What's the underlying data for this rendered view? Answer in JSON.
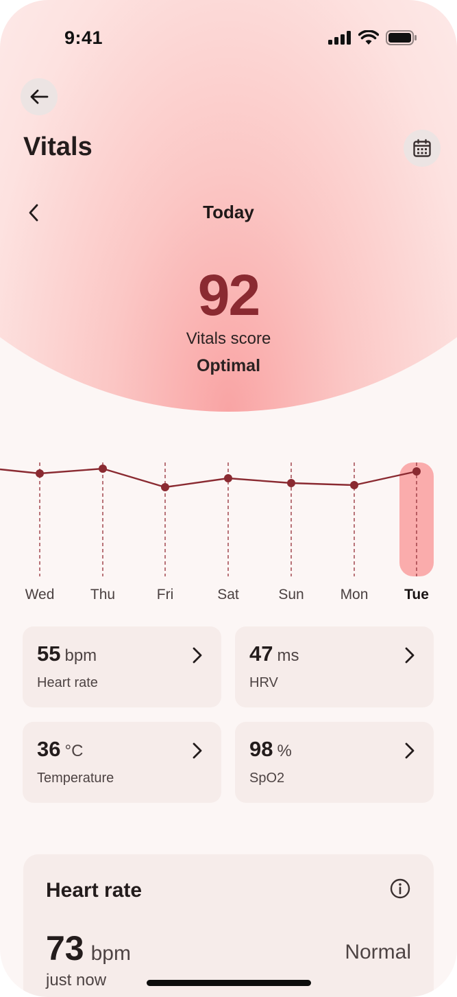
{
  "status_bar": {
    "time": "9:41",
    "icons": [
      "cellular-signal-icon",
      "wifi-icon",
      "battery-icon"
    ]
  },
  "header": {
    "title": "Vitals",
    "back_icon": "arrow-left-icon",
    "calendar_icon": "calendar-icon"
  },
  "date_nav": {
    "label": "Today",
    "prev_icon": "chevron-left-icon"
  },
  "score": {
    "value": "92",
    "label": "Vitals score",
    "status": "Optimal"
  },
  "colors": {
    "accent": "#8a2a31",
    "highlight": "#f9a4a4",
    "card": "#f6ecea",
    "background": "#fcf6f5"
  },
  "trend": {
    "days": [
      "Wed",
      "Thu",
      "Fri",
      "Sat",
      "Sun",
      "Mon",
      "Tue"
    ],
    "selected_index": 6
  },
  "metrics": [
    {
      "value": "55",
      "unit": "bpm",
      "label": "Heart rate"
    },
    {
      "value": "47",
      "unit": "ms",
      "label": "HRV"
    },
    {
      "value": "36",
      "unit": "°C",
      "label": "Temperature"
    },
    {
      "value": "98",
      "unit": "%",
      "label": "SpO2"
    }
  ],
  "heart_rate_card": {
    "title": "Heart rate",
    "value": "73",
    "unit": "bpm",
    "status": "Normal",
    "time": "just now",
    "info_icon": "info-icon"
  }
}
